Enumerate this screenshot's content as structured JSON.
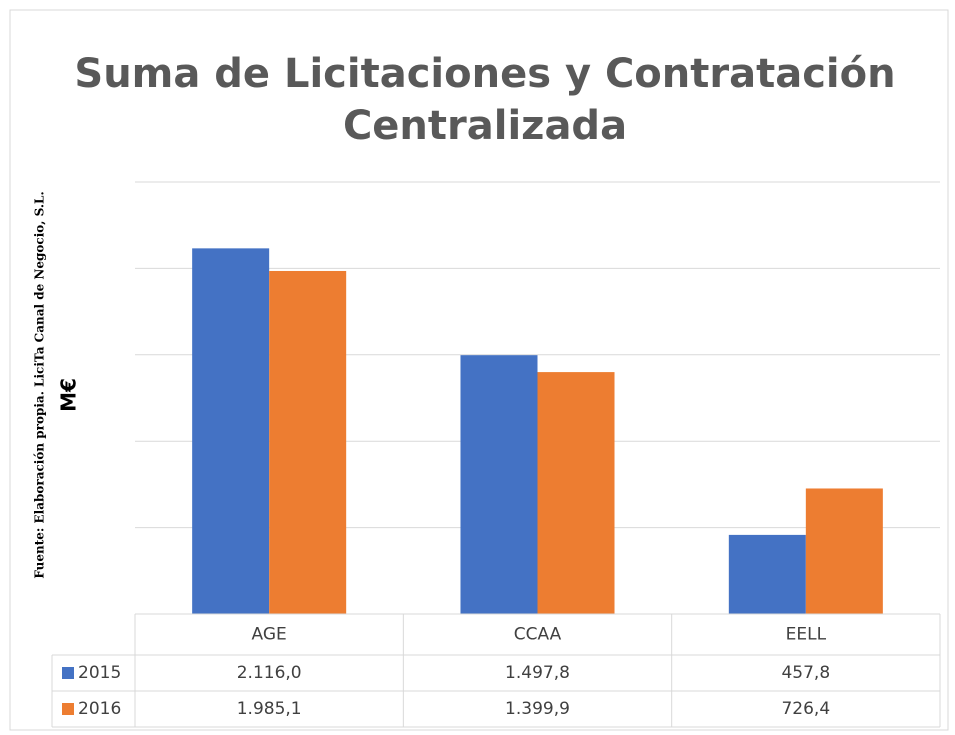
{
  "chart_data": {
    "type": "bar",
    "title": "Suma de Licitaciones y Contratación Centralizada",
    "source": "Fuente: Elaboración propia. LiciTa Canal de Negocio, S.L.",
    "ylabel": "M€",
    "categories": [
      "AGE",
      "CCAA",
      "EELL"
    ],
    "series": [
      {
        "name": "2015",
        "color": "#4472c4",
        "values": [
          2116.0,
          1497.8,
          457.8
        ],
        "value_labels": [
          "2.116,0",
          "1.497,8",
          "457,8"
        ]
      },
      {
        "name": "2016",
        "color": "#ed7d31",
        "values": [
          1985.1,
          1399.9,
          726.4
        ],
        "value_labels": [
          "1.985,1",
          "1.399,9",
          "726,4"
        ]
      }
    ],
    "ylim": [
      0,
      2500
    ],
    "yticks": [
      0,
      500,
      1000,
      1500,
      2000,
      2500
    ],
    "grid": true
  }
}
